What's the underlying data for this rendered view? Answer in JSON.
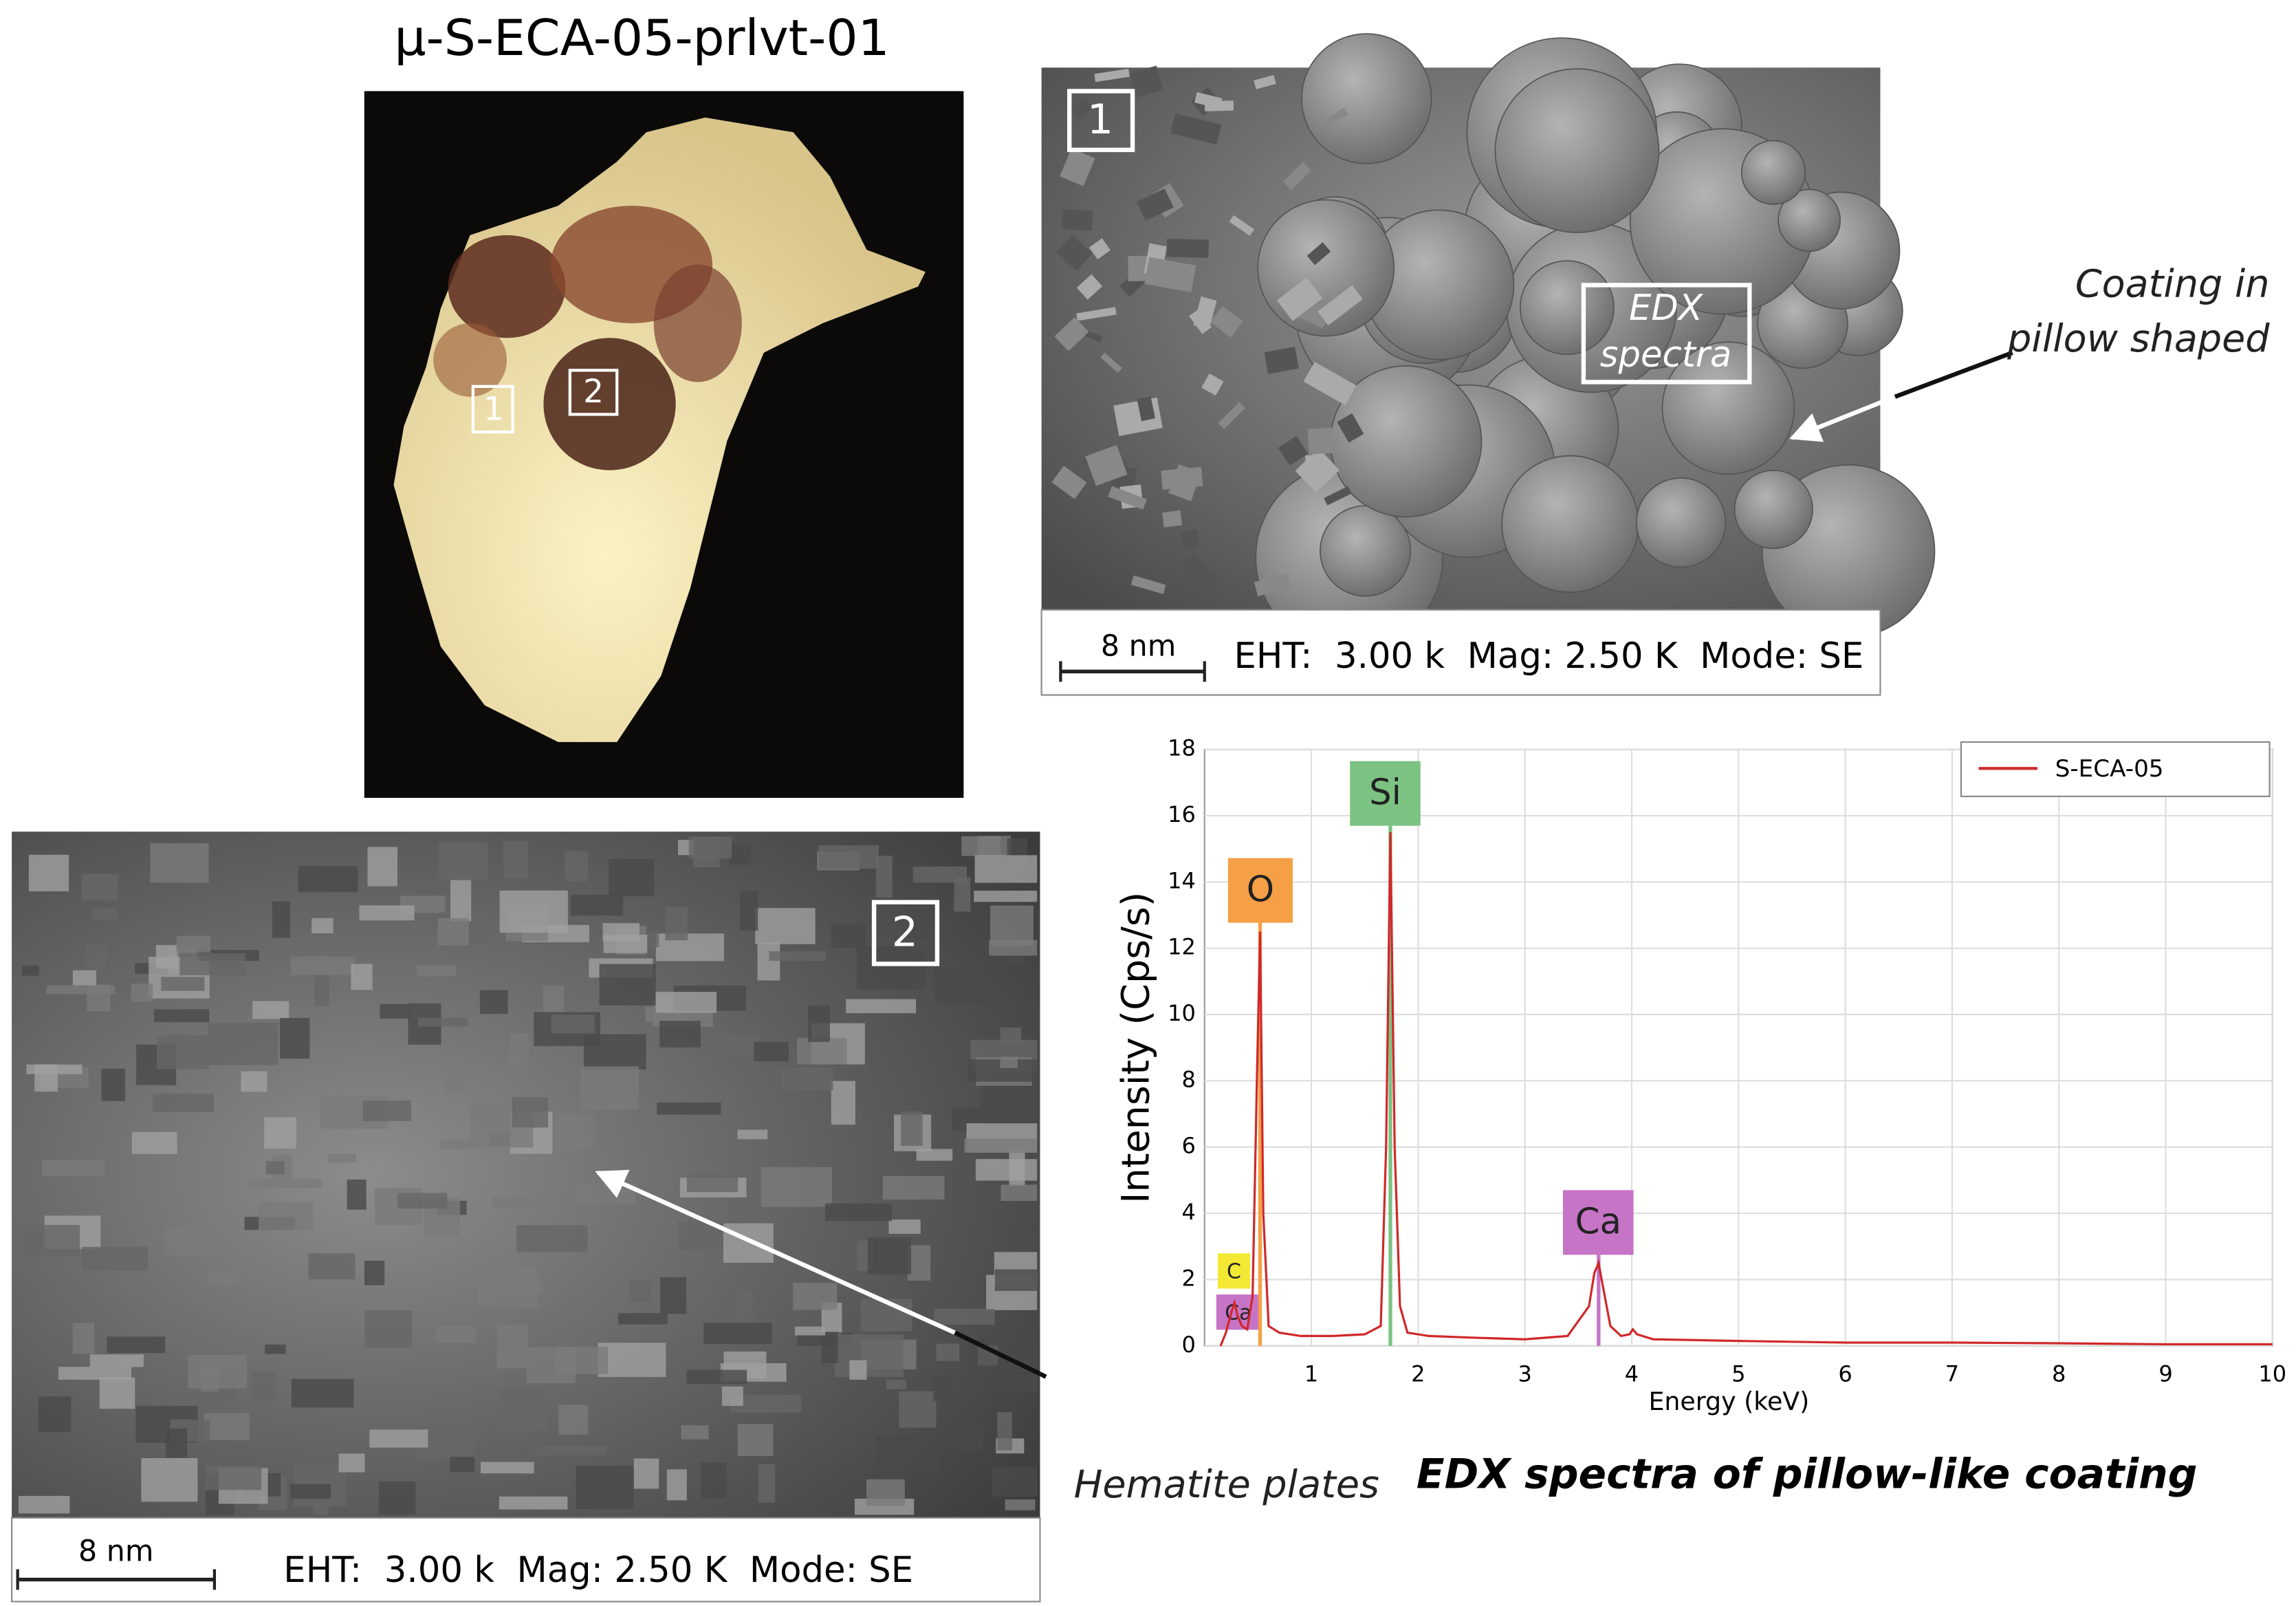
{
  "title": "μ-S-ECA-05-prlvt-01",
  "photo": {
    "labels": [
      "1",
      "2"
    ]
  },
  "sem_1": {
    "label": "1",
    "box_label": [
      "EDX",
      "spectra"
    ],
    "annotation": [
      "Coating in",
      "pillow shaped"
    ],
    "scale_bar": "8 nm",
    "info": "EHT:  3.00 k  Mag: 2.50 K  Mode: SE"
  },
  "sem_2": {
    "label": "2",
    "annotation": "Hematite plates",
    "scale_bar": "8 nm",
    "info": "EHT:  3.00 k  Mag: 2.50 K  Mode: SE"
  },
  "chart_data": {
    "type": "line",
    "xlabel": "Energy (keV)",
    "ylabel": "Intensity (Cps/s)",
    "caption": "EDX spectra of pillow-like coating",
    "x": [
      0.15,
      0.2,
      0.25,
      0.28,
      0.31,
      0.35,
      0.4,
      0.45,
      0.49,
      0.52,
      0.55,
      0.6,
      0.7,
      0.9,
      1.2,
      1.5,
      1.65,
      1.7,
      1.74,
      1.78,
      1.83,
      1.9,
      2.1,
      2.5,
      3.0,
      3.4,
      3.6,
      3.65,
      3.69,
      3.73,
      3.8,
      3.9,
      3.98,
      4.01,
      4.05,
      4.2,
      5,
      6,
      7,
      8,
      9,
      10
    ],
    "series": [
      {
        "name": "S-ECA-05",
        "color": "#d0282a",
        "values": [
          0,
          0.4,
          1.0,
          1.3,
          0.9,
          0.6,
          0.5,
          1.5,
          8,
          12.5,
          4,
          0.6,
          0.4,
          0.3,
          0.3,
          0.35,
          0.6,
          6,
          15.5,
          6,
          1.2,
          0.4,
          0.3,
          0.25,
          0.2,
          0.3,
          1.2,
          2.2,
          2.5,
          1.8,
          0.6,
          0.3,
          0.35,
          0.5,
          0.35,
          0.2,
          0.15,
          0.1,
          0.1,
          0.08,
          0.05,
          0.05
        ]
      }
    ],
    "xlim": [
      0,
      10
    ],
    "ylim": [
      0,
      18
    ],
    "xticks": [
      1,
      2,
      3,
      4,
      5,
      6,
      7,
      8,
      9,
      10
    ],
    "yticks": [
      0,
      2,
      4,
      6,
      8,
      10,
      12,
      14,
      16,
      18
    ],
    "grid": true,
    "legend": "upper right",
    "markers": [
      {
        "label": "C",
        "x": 0.28,
        "color": "#f3e834"
      },
      {
        "label": "Ca",
        "x": 0.34,
        "color": "#c674c6"
      },
      {
        "label": "O",
        "x": 0.52,
        "color": "#f5a046"
      },
      {
        "label": "Si",
        "x": 1.74,
        "color": "#7cc283"
      },
      {
        "label": "Ca",
        "x": 3.69,
        "color": "#c674c6"
      }
    ]
  }
}
